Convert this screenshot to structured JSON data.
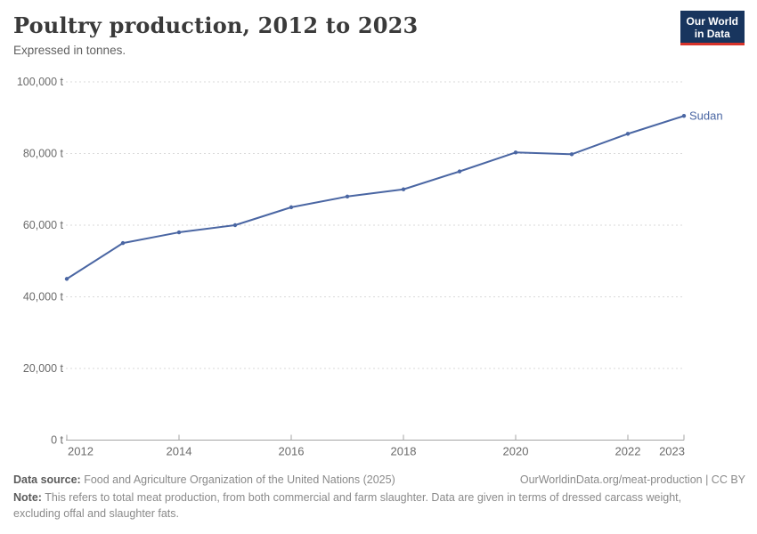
{
  "header": {
    "title": "Poultry production, 2012 to 2023",
    "subtitle": "Expressed in tonnes.",
    "logo": {
      "line1": "Our World",
      "line2": "in Data",
      "bg_color": "#18355e",
      "accent_color": "#d7332a"
    }
  },
  "chart_data": {
    "type": "line",
    "title": "Poultry production, 2012 to 2023",
    "unit": "tonnes",
    "x": [
      2012,
      2013,
      2014,
      2015,
      2016,
      2017,
      2018,
      2019,
      2020,
      2021,
      2022,
      2023
    ],
    "series": [
      {
        "name": "Sudan",
        "color": "#4a66a3",
        "values": [
          45000,
          55000,
          58000,
          60000,
          65000,
          68000,
          70000,
          75000,
          80300,
          79800,
          85500,
          90500
        ]
      }
    ],
    "ylim": [
      0,
      100000
    ],
    "yticks": [
      0,
      20000,
      40000,
      60000,
      80000,
      100000
    ],
    "ytick_labels": [
      "0 t",
      "20,000 t",
      "40,000 t",
      "60,000 t",
      "80,000 t",
      "100,000 t"
    ],
    "xticks": [
      2012,
      2014,
      2016,
      2018,
      2020,
      2022,
      2023
    ],
    "xtick_labels": [
      "2012",
      "2014",
      "2016",
      "2018",
      "2020",
      "2022",
      "2023"
    ],
    "grid": "dashed-horizontal",
    "legend_position": "end-of-line",
    "entity_label": "Sudan",
    "colors": {
      "gridline": "#dadada",
      "axis_line": "#a5a5a5",
      "tick_label": "#6b6b6b"
    }
  },
  "footer": {
    "source_label": "Data source:",
    "source_text": "Food and Agriculture Organization of the United Nations (2025)",
    "link_text": "OurWorldinData.org/meat-production | CC BY",
    "note_label": "Note:",
    "note_text": "This refers to total meat production, from both commercial and farm slaughter. Data are given in terms of dressed carcass weight, excluding offal and slaughter fats."
  }
}
